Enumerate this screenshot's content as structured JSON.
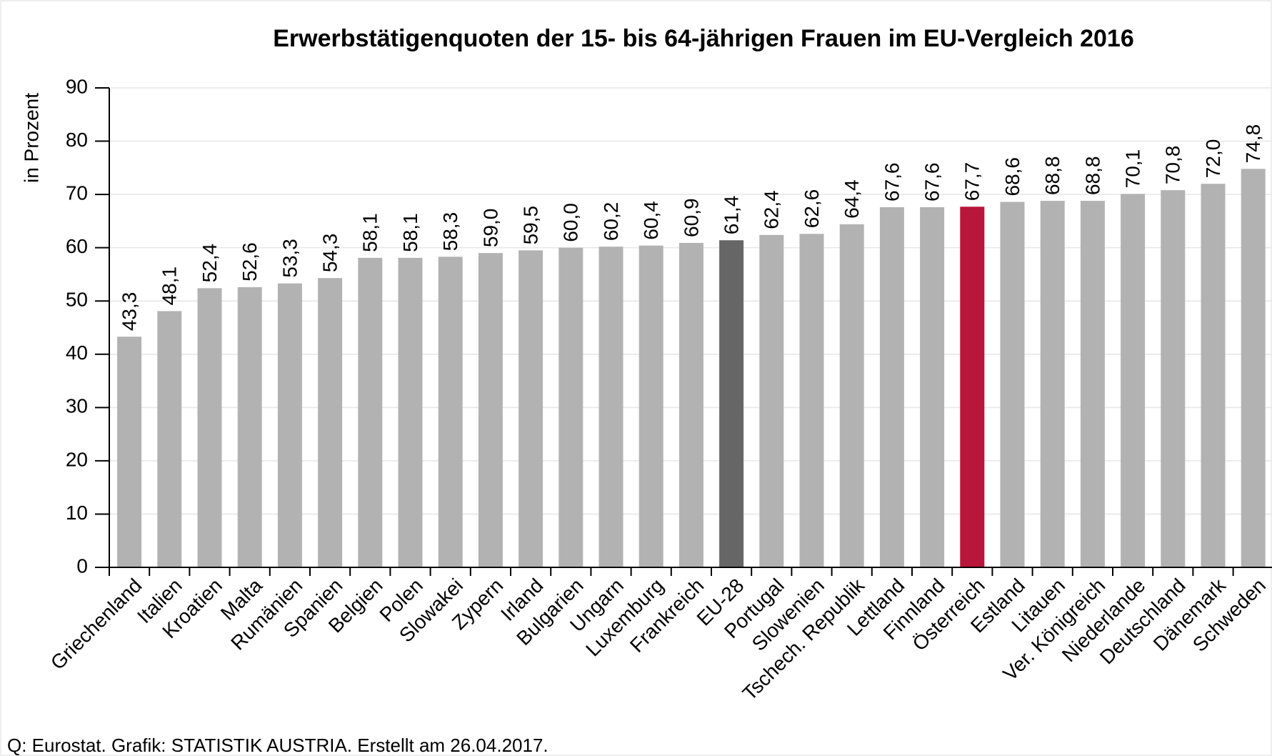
{
  "chart_data": {
    "type": "bar",
    "title": "Erwerbstätigenquoten der 15- bis 64-jährigen Frauen im EU-Vergleich 2016",
    "y_label": "in Prozent",
    "source": "Q: Eurostat. Grafik: STATISTIK AUSTRIA. Erstellt am 26.04.2017.",
    "categories": [
      "Griechenland",
      "Italien",
      "Kroatien",
      "Malta",
      "Rumänien",
      "Spanien",
      "Belgien",
      "Polen",
      "Slowakei",
      "Zypern",
      "Irland",
      "Bulgarien",
      "Ungarn",
      "Luxemburg",
      "Frankreich",
      "EU-28",
      "Portugal",
      "Slowenien",
      "Tschech. Republik",
      "Lettland",
      "Finnland",
      "Österreich",
      "Estland",
      "Litauen",
      "Ver. Königreich",
      "Niederlande",
      "Deutschland",
      "Dänemark",
      "Schweden"
    ],
    "values": [
      43.3,
      48.1,
      52.4,
      52.6,
      53.3,
      54.3,
      58.1,
      58.1,
      58.3,
      59.0,
      59.5,
      60.0,
      60.2,
      60.4,
      60.9,
      61.4,
      62.4,
      62.6,
      64.4,
      67.6,
      67.6,
      67.7,
      68.6,
      68.8,
      68.8,
      70.1,
      70.8,
      72.0,
      74.8
    ],
    "value_labels": [
      "43,3",
      "48,1",
      "52,4",
      "52,6",
      "53,3",
      "54,3",
      "58,1",
      "58,1",
      "58,3",
      "59,0",
      "59,5",
      "60,0",
      "60,2",
      "60,4",
      "60,9",
      "61,4",
      "62,4",
      "62,6",
      "64,4",
      "67,6",
      "67,6",
      "67,7",
      "68,6",
      "68,8",
      "68,8",
      "70,1",
      "70,8",
      "72,0",
      "74,8"
    ],
    "colors": [
      "#b2b2b2",
      "#b2b2b2",
      "#b2b2b2",
      "#b2b2b2",
      "#b2b2b2",
      "#b2b2b2",
      "#b2b2b2",
      "#b2b2b2",
      "#b2b2b2",
      "#b2b2b2",
      "#b2b2b2",
      "#b2b2b2",
      "#b2b2b2",
      "#b2b2b2",
      "#b2b2b2",
      "#666666",
      "#b2b2b2",
      "#b2b2b2",
      "#b2b2b2",
      "#b2b2b2",
      "#b2b2b2",
      "#b8163a",
      "#b2b2b2",
      "#b2b2b2",
      "#b2b2b2",
      "#b2b2b2",
      "#b2b2b2",
      "#b2b2b2",
      "#b2b2b2"
    ],
    "ylim": [
      0,
      90
    ],
    "yticks": [
      0,
      10,
      20,
      30,
      40,
      50,
      60,
      70,
      80,
      90
    ],
    "grid": true
  }
}
